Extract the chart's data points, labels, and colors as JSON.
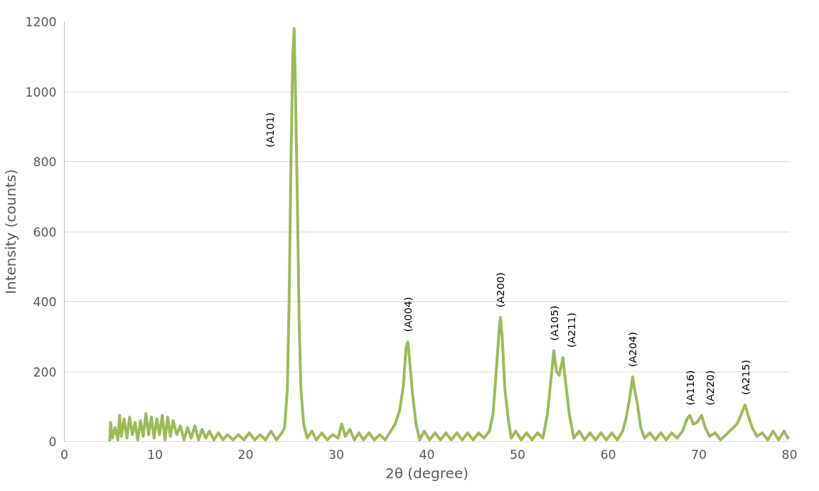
{
  "chart_data": {
    "type": "line",
    "xlabel": "2θ (degree)",
    "ylabel": "Intensity (counts)",
    "xlim": [
      0,
      80
    ],
    "xticks": [
      0,
      10,
      20,
      30,
      40,
      50,
      60,
      70,
      80
    ],
    "ylim": [
      0,
      1200
    ],
    "yticks": [
      0,
      200,
      400,
      600,
      800,
      1000,
      1200
    ],
    "grid": "y",
    "marker": "none",
    "line_style": "solid",
    "series": [
      {
        "color": "#9bbb59",
        "x": [
          5.0,
          5.1,
          5.3,
          5.6,
          5.9,
          6.1,
          6.3,
          6.6,
          6.9,
          7.2,
          7.5,
          7.8,
          8.1,
          8.4,
          8.7,
          9.0,
          9.3,
          9.6,
          9.9,
          10.2,
          10.5,
          10.8,
          11.1,
          11.4,
          11.7,
          12.0,
          12.4,
          12.8,
          13.2,
          13.6,
          14.0,
          14.4,
          14.8,
          15.2,
          15.6,
          16.0,
          16.5,
          17.0,
          17.5,
          18.0,
          18.6,
          19.2,
          19.8,
          20.4,
          21.0,
          21.6,
          22.2,
          22.8,
          23.4,
          24.0,
          24.3,
          24.6,
          24.8,
          25.0,
          25.2,
          25.35,
          25.5,
          25.7,
          25.9,
          26.1,
          26.4,
          26.8,
          27.3,
          27.8,
          28.4,
          29.0,
          29.6,
          30.2,
          30.6,
          31.0,
          31.5,
          32.0,
          32.5,
          33.0,
          33.6,
          34.2,
          34.8,
          35.4,
          36.0,
          36.5,
          37.0,
          37.4,
          37.7,
          37.9,
          38.1,
          38.4,
          38.8,
          39.2,
          39.7,
          40.3,
          40.9,
          41.5,
          42.1,
          42.7,
          43.3,
          43.9,
          44.5,
          45.1,
          45.7,
          46.3,
          46.9,
          47.3,
          47.7,
          48.0,
          48.1,
          48.3,
          48.6,
          49.0,
          49.3,
          49.8,
          50.4,
          51.0,
          51.6,
          52.2,
          52.8,
          53.3,
          53.7,
          54.0,
          54.3,
          54.6,
          55.0,
          55.3,
          55.7,
          56.2,
          56.8,
          57.4,
          58.0,
          58.6,
          59.2,
          59.8,
          60.4,
          61.0,
          61.6,
          62.0,
          62.4,
          62.7,
          62.9,
          63.2,
          63.6,
          64.0,
          64.6,
          65.2,
          65.8,
          66.4,
          67.0,
          67.6,
          68.2,
          68.7,
          69.0,
          69.4,
          69.8,
          70.3,
          70.7,
          71.2,
          71.8,
          72.4,
          73.0,
          73.6,
          74.2,
          74.7,
          75.1,
          75.5,
          75.9,
          76.4,
          77.0,
          77.6,
          78.2,
          78.8,
          79.4,
          79.8,
          80.0
        ],
        "values": [
          0,
          55,
          10,
          40,
          5,
          75,
          15,
          65,
          10,
          70,
          20,
          55,
          5,
          60,
          15,
          80,
          20,
          70,
          10,
          65,
          20,
          75,
          5,
          70,
          15,
          60,
          20,
          45,
          5,
          40,
          10,
          45,
          5,
          35,
          10,
          30,
          5,
          25,
          5,
          20,
          5,
          20,
          5,
          25,
          5,
          20,
          5,
          30,
          5,
          25,
          40,
          150,
          400,
          800,
          1100,
          1180,
          1000,
          700,
          350,
          150,
          50,
          10,
          30,
          5,
          25,
          5,
          20,
          10,
          50,
          15,
          35,
          5,
          25,
          5,
          25,
          5,
          20,
          5,
          30,
          50,
          90,
          160,
          270,
          285,
          230,
          140,
          50,
          5,
          30,
          5,
          25,
          5,
          25,
          5,
          25,
          5,
          25,
          5,
          25,
          10,
          30,
          80,
          220,
          330,
          355,
          300,
          150,
          60,
          10,
          30,
          5,
          25,
          5,
          25,
          10,
          80,
          180,
          260,
          200,
          190,
          240,
          170,
          80,
          10,
          30,
          5,
          25,
          5,
          25,
          5,
          25,
          5,
          30,
          70,
          130,
          185,
          150,
          110,
          40,
          10,
          25,
          5,
          25,
          5,
          25,
          10,
          30,
          65,
          75,
          50,
          55,
          75,
          40,
          15,
          25,
          5,
          20,
          35,
          50,
          80,
          105,
          70,
          40,
          15,
          25,
          5,
          30,
          5,
          30,
          10,
          15
        ]
      }
    ],
    "annotations": [
      {
        "text": "(A101)",
        "x": 25.0,
        "y": 800
      },
      {
        "text": "(A004)",
        "x": 37.9,
        "y": 285
      },
      {
        "text": "(A200)",
        "x": 48.1,
        "y": 355
      },
      {
        "text": "(A105)",
        "x": 54.0,
        "y": 260
      },
      {
        "text": "(A211)",
        "x": 55.0,
        "y": 240
      },
      {
        "text": "(A204)",
        "x": 62.7,
        "y": 185
      },
      {
        "text": "(A116)",
        "x": 69.0,
        "y": 75
      },
      {
        "text": "(A220)",
        "x": 70.3,
        "y": 75
      },
      {
        "text": "(A215)",
        "x": 75.1,
        "y": 105
      }
    ]
  }
}
